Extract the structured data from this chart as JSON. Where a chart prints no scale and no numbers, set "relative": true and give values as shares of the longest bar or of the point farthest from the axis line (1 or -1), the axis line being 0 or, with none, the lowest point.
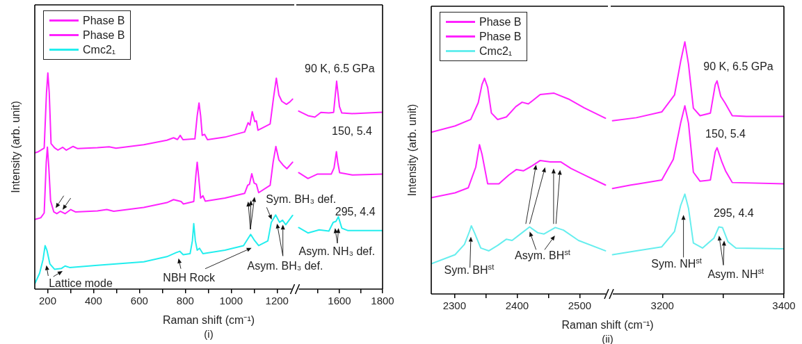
{
  "chart_data": [
    {
      "type": "line",
      "relative": true,
      "title": "(i)",
      "xlabel": "Raman shift (cm⁻¹)",
      "ylabel": "Intensity (arb. unit)",
      "legend": "top left",
      "xlim": [
        144,
        1275
      ],
      "xticks": [
        200,
        {
          "value": 300,
          "label": null
        },
        400,
        {
          "value": 500,
          "label": null
        },
        600,
        {
          "value": 700,
          "label": null
        },
        800,
        {
          "value": 900,
          "label": null
        },
        1000,
        {
          "value": 1100,
          "label": null
        },
        1200
      ],
      "annotations": [
        "Lattice mode",
        "NBH Rock",
        "Asym. BH₃ def."
      ],
      "series": [
        {
          "name": "Phase B",
          "color": "#ff22ff",
          "x": [
            144,
            160,
            185,
            195,
            201,
            207,
            215,
            230,
            245,
            266,
            281,
            311,
            331,
            417,
            468,
            498,
            619,
            720,
            749,
            766,
            778,
            790,
            842,
            852,
            860,
            867,
            874,
            884,
            897,
            973,
            1059,
            1074,
            1082,
            1092,
            1103,
            1110,
            1117,
            1170,
            1185,
            1197,
            1208,
            1221,
            1241,
            1256,
            1268
          ],
          "values": [
            0.63,
            0.636,
            0.652,
            0.908,
            1,
            0.909,
            0.673,
            0.654,
            0.643,
            0.656,
            0.643,
            0.66,
            0.65,
            0.654,
            0.658,
            0.652,
            0.668,
            0.689,
            0.7,
            0.692,
            0.711,
            0.691,
            0.695,
            0.802,
            0.861,
            0.802,
            0.711,
            0.716,
            0.691,
            0.703,
            0.727,
            0.77,
            0.759,
            0.821,
            0.775,
            0.778,
            0.735,
            0.764,
            0.887,
            0.976,
            0.898,
            0.869,
            0.855,
            0.866,
            0.879
          ]
        },
        {
          "name": "Phase B",
          "color": "#ff22ff",
          "x": [
            144,
            170,
            185,
            194,
            199,
            205,
            213,
            227,
            240,
            256,
            276,
            301,
            321,
            417,
            458,
            488,
            619,
            720,
            749,
            782,
            792,
            837,
            846,
            852,
            859,
            867,
            877,
            887,
            973,
            1059,
            1072,
            1080,
            1090,
            1100,
            1110,
            1120,
            1170,
            1183,
            1195,
            1208,
            1226,
            1243,
            1268
          ],
          "values": [
            0.322,
            0.33,
            0.352,
            0.587,
            0.657,
            0.566,
            0.408,
            0.357,
            0.349,
            0.36,
            0.349,
            0.368,
            0.357,
            0.362,
            0.368,
            0.36,
            0.378,
            0.4,
            0.414,
            0.405,
            0.394,
            0.405,
            0.523,
            0.587,
            0.512,
            0.421,
            0.432,
            0.407,
            0.421,
            0.443,
            0.48,
            0.485,
            0.534,
            0.491,
            0.485,
            0.446,
            0.48,
            0.587,
            0.66,
            0.598,
            0.574,
            0.557,
            0.587
          ]
        },
        {
          "name": "Cmc2₁",
          "color": "#22eeee",
          "x": [
            144,
            165,
            180,
            189,
            197,
            210,
            230,
            261,
            276,
            296,
            417,
            619,
            720,
            761,
            776,
            791,
            821,
            831,
            837,
            844,
            852,
            862,
            877,
            973,
            1054,
            1085,
            1100,
            1120,
            1160,
            1175,
            1194,
            1211,
            1224,
            1238,
            1268
          ],
          "values": [
            0.025,
            0.073,
            0.137,
            0.201,
            0.18,
            0.116,
            0.092,
            0.096,
            0.107,
            0.1,
            0.11,
            0.126,
            0.15,
            0.169,
            0.175,
            0.159,
            0.164,
            0.223,
            0.303,
            0.223,
            0.18,
            0.189,
            0.164,
            0.18,
            0.201,
            0.253,
            0.228,
            0.201,
            0.223,
            0.309,
            0.343,
            0.309,
            0.319,
            0.298,
            0.341
          ]
        }
      ]
    },
    {
      "type": "line",
      "relative": true,
      "xlim": [
        1400,
        1800
      ],
      "xticks": [
        {
          "value": 1500,
          "label": null
        },
        1600,
        {
          "value": 1700,
          "label": null
        },
        1800
      ],
      "annotations": [
        "90 K, 6.5 GPa",
        "150, 5.4",
        "295, 4.4",
        "Sym. BH₃ def.",
        "Asym. NH₃ def."
      ],
      "series": [
        {
          "color": "#ff22ff",
          "x": [
            1411,
            1454,
            1486,
            1514,
            1551,
            1573,
            1587,
            1600,
            1611,
            1659,
            1800
          ],
          "values": [
            0.856,
            0.834,
            0.827,
            0.85,
            0.847,
            0.85,
            1,
            0.878,
            0.847,
            0.844,
            0.851
          ]
        },
        {
          "color": "#ff22ff",
          "x": [
            1411,
            1454,
            1497,
            1562,
            1575,
            1586,
            1592,
            1601,
            1659,
            1800
          ],
          "values": [
            0.56,
            0.532,
            0.553,
            0.553,
            0.583,
            0.661,
            0.61,
            0.56,
            0.549,
            0.553
          ]
        },
        {
          "color": "#22eeee",
          "x": [
            1411,
            1454,
            1506,
            1551,
            1571,
            1584,
            1595,
            1611,
            1638,
            1800
          ],
          "values": [
            0.296,
            0.27,
            0.285,
            0.279,
            0.321,
            0.326,
            0.348,
            0.293,
            0.282,
            0.282
          ]
        }
      ]
    },
    {
      "type": "line",
      "relative": true,
      "title": "(ii)",
      "xlabel": "Raman shift (cm⁻¹)",
      "ylabel": "Intensity (arb. unit)",
      "legend": "top left",
      "xlim": [
        2263,
        2545
      ],
      "xticks": [
        2300,
        {
          "value": 2350,
          "label": null
        },
        2400,
        {
          "value": 2450,
          "label": null
        },
        2500
      ],
      "annotations": [
        "Sym. BH$^{st}$",
        "Asym. BH$^{st}$"
      ],
      "series": [
        {
          "name": "Phase B",
          "color": "#ff22ff",
          "x": [
            2263,
            2301,
            2326,
            2338,
            2344,
            2348,
            2353,
            2359,
            2369,
            2383,
            2398,
            2408,
            2418,
            2437,
            2459,
            2482,
            2507,
            2541
          ],
          "values": [
            0.75,
            0.779,
            0.809,
            0.887,
            0.971,
            1,
            0.958,
            0.839,
            0.809,
            0.821,
            0.869,
            0.889,
            0.881,
            0.925,
            0.931,
            0.904,
            0.863,
            0.815
          ]
        },
        {
          "name": "Phase B",
          "color": "#ff22ff",
          "x": [
            2263,
            2301,
            2322,
            2334,
            2340,
            2344,
            2353,
            2371,
            2387,
            2399,
            2410,
            2424,
            2437,
            2453,
            2470,
            2486,
            2507,
            2541
          ],
          "values": [
            0.446,
            0.469,
            0.492,
            0.588,
            0.692,
            0.648,
            0.511,
            0.511,
            0.552,
            0.577,
            0.571,
            0.594,
            0.619,
            0.612,
            0.612,
            0.582,
            0.552,
            0.505
          ]
        },
        {
          "name": "Cmc2₁",
          "color": "#66eeee",
          "x": [
            2263,
            2301,
            2316,
            2324,
            2327,
            2332,
            2342,
            2355,
            2369,
            2383,
            2392,
            2408,
            2420,
            2433,
            2443,
            2461,
            2474,
            2498,
            2541
          ],
          "values": [
            0.14,
            0.182,
            0.23,
            0.29,
            0.316,
            0.284,
            0.213,
            0.2,
            0.225,
            0.254,
            0.248,
            0.284,
            0.311,
            0.284,
            0.278,
            0.308,
            0.296,
            0.248,
            0.2
          ]
        }
      ]
    },
    {
      "type": "line",
      "relative": true,
      "xlim": [
        3115,
        3400
      ],
      "xticks": [
        3200,
        {
          "value": 3300,
          "label": null
        },
        3400
      ],
      "annotations": [
        "90 K, 6.5 GPa",
        "150, 5.4",
        "295, 4.4",
        "Sym. NH$^{st}$",
        "Asym. NH$^{st}$"
      ],
      "series": [
        {
          "color": "#ff22ff",
          "x": [
            3118,
            3157,
            3199,
            3220,
            3230,
            3237,
            3243,
            3251,
            3262,
            3279,
            3287,
            3290,
            3296,
            3303,
            3315,
            3338,
            3400
          ],
          "values": [
            0.687,
            0.699,
            0.722,
            0.789,
            0.921,
            1,
            0.911,
            0.737,
            0.707,
            0.717,
            0.83,
            0.845,
            0.784,
            0.758,
            0.707,
            0.704,
            0.704
          ]
        },
        {
          "color": "#ff22ff",
          "x": [
            3118,
            3148,
            3161,
            3199,
            3218,
            3230,
            3237,
            3243,
            3251,
            3262,
            3279,
            3287,
            3290,
            3298,
            3304,
            3315,
            3400
          ],
          "values": [
            0.418,
            0.432,
            0.437,
            0.452,
            0.534,
            0.677,
            0.746,
            0.677,
            0.483,
            0.447,
            0.452,
            0.564,
            0.58,
            0.523,
            0.488,
            0.442,
            0.437
          ]
        },
        {
          "color": "#66eeee",
          "x": [
            3118,
            3157,
            3199,
            3220,
            3230,
            3237,
            3243,
            3251,
            3266,
            3285,
            3293,
            3299,
            3308,
            3321,
            3400
          ],
          "values": [
            0.156,
            0.171,
            0.187,
            0.248,
            0.35,
            0.396,
            0.34,
            0.202,
            0.182,
            0.222,
            0.266,
            0.263,
            0.207,
            0.182,
            0.179
          ]
        }
      ]
    }
  ]
}
